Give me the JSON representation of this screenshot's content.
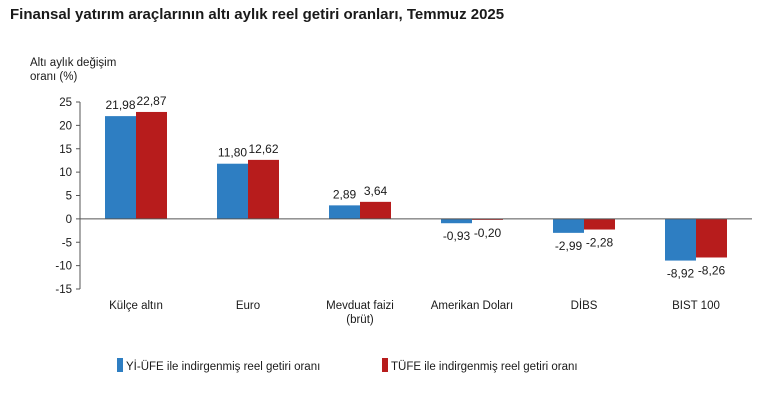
{
  "chart_data": {
    "type": "bar",
    "title": "Finansal yatırım araçlarının altı aylık reel getiri oranları, Temmuz 2025",
    "ylabel": [
      "Altı aylık değişim",
      "oranı (%)"
    ],
    "ylim": [
      -15,
      25
    ],
    "yticks": [
      25,
      20,
      15,
      10,
      5,
      0,
      -5,
      -10,
      -15
    ],
    "categories": [
      [
        "Külçe altın"
      ],
      [
        "Euro"
      ],
      [
        "Mevduat faizi",
        "(brüt)"
      ],
      [
        "Amerikan Doları"
      ],
      [
        "DİBS"
      ],
      [
        "BIST 100"
      ]
    ],
    "series": [
      {
        "name": "Yİ-ÜFE ile indirgenmiş reel getiri oranı",
        "color": "#2e7ec2",
        "values": [
          21.98,
          11.8,
          2.89,
          -0.93,
          -2.99,
          -8.92
        ],
        "labels": [
          "21,98",
          "11,80",
          "2,89",
          "-0,93",
          "-2,99",
          "-8,92"
        ]
      },
      {
        "name": "TÜFE ile indirgenmiş reel getiri oranı",
        "color": "#b71c1c",
        "values": [
          22.87,
          12.62,
          3.64,
          -0.2,
          -2.28,
          -8.26
        ],
        "labels": [
          "22,87",
          "12,62",
          "3,64",
          "-0,20",
          "-2,28",
          "-8,26"
        ]
      }
    ],
    "grid": false,
    "legend_position": "bottom"
  }
}
